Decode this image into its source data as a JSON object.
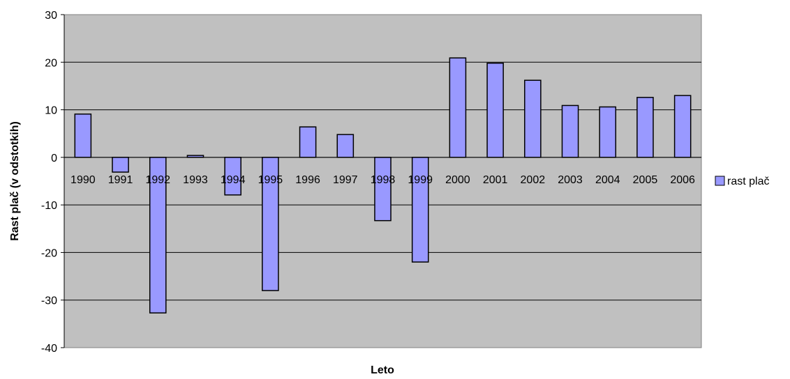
{
  "chart_data": {
    "type": "bar",
    "xlabel": "Leto",
    "ylabel": "Rast plač (v odstotkih)",
    "ylim": [
      -40,
      30
    ],
    "yticks": [
      30,
      20,
      10,
      0,
      -10,
      -20,
      -30,
      -40
    ],
    "grid": true,
    "legend_position": "right",
    "categories": [
      "1990",
      "1991",
      "1992",
      "1993",
      "1994",
      "1995",
      "1996",
      "1997",
      "1998",
      "1999",
      "2000",
      "2001",
      "2002",
      "2003",
      "2004",
      "2005",
      "2006"
    ],
    "series": [
      {
        "name": "rast plač",
        "color": "#9999ff",
        "values": [
          9.1,
          -3.1,
          -32.7,
          0.4,
          -7.9,
          -28.0,
          6.4,
          4.8,
          -13.3,
          -22.0,
          20.9,
          19.8,
          16.2,
          10.9,
          10.6,
          12.6,
          13.0
        ]
      }
    ],
    "plot_background": "#c0c0c0",
    "bar_outline": "#000000"
  }
}
